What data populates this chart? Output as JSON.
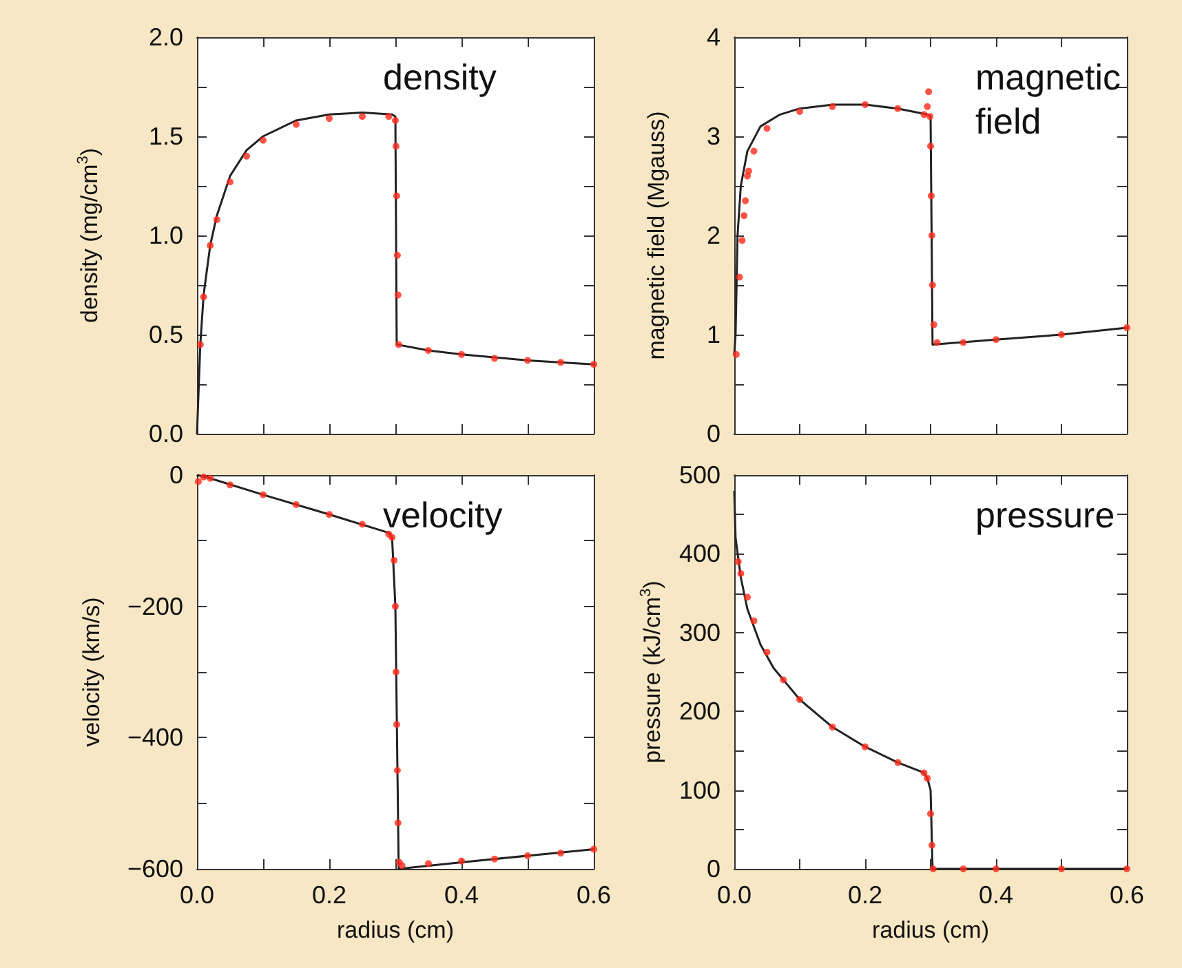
{
  "chart_data": [
    {
      "type": "line",
      "title": "density",
      "ylabel": "density (mg/cm$^{3}$)",
      "xlim": [
        0,
        0.6
      ],
      "ylim": [
        0,
        2.0
      ],
      "tick_labels": "y",
      "xticks": [
        {
          "value": 0,
          "label": null
        },
        {
          "value": 0.1,
          "label": null
        },
        {
          "value": 0.2,
          "label": null
        },
        {
          "value": 0.3,
          "label": null
        },
        {
          "value": 0.4,
          "label": null
        },
        {
          "value": 0.5,
          "label": null
        },
        {
          "value": 0.6,
          "label": null
        }
      ],
      "yticks": [
        {
          "value": 0,
          "label": "0.0"
        },
        {
          "value": 0.25,
          "label": null
        },
        {
          "value": 0.5,
          "label": "0.5"
        },
        {
          "value": 0.75,
          "label": null
        },
        {
          "value": 1,
          "label": "1.0"
        },
        {
          "value": 1.25,
          "label": null
        },
        {
          "value": 1.5,
          "label": "1.5"
        },
        {
          "value": 1.75,
          "label": null
        },
        {
          "value": 2,
          "label": "2.0"
        }
      ],
      "series": [
        {
          "type": "line",
          "color": "#222222",
          "marker": "none",
          "x": [
            0,
            0.005,
            0.01,
            0.02,
            0.03,
            0.05,
            0.075,
            0.1,
            0.15,
            0.2,
            0.25,
            0.295,
            0.3,
            0.302,
            0.35,
            0.4,
            0.5,
            0.6
          ],
          "values": [
            0,
            0.45,
            0.7,
            0.95,
            1.1,
            1.3,
            1.43,
            1.5,
            1.58,
            1.61,
            1.62,
            1.61,
            1.6,
            0.45,
            0.42,
            0.4,
            0.37,
            0.35
          ]
        },
        {
          "type": "scatter",
          "color": "#ff2a1a",
          "marker": "circle",
          "x": [
            0.005,
            0.01,
            0.02,
            0.03,
            0.05,
            0.075,
            0.1,
            0.15,
            0.2,
            0.25,
            0.29,
            0.3,
            0.301,
            0.302,
            0.303,
            0.304,
            0.305,
            0.35,
            0.4,
            0.45,
            0.5,
            0.55,
            0.6
          ],
          "values": [
            0.45,
            0.69,
            0.95,
            1.08,
            1.27,
            1.4,
            1.48,
            1.56,
            1.59,
            1.6,
            1.6,
            1.58,
            1.45,
            1.2,
            0.9,
            0.7,
            0.45,
            0.42,
            0.4,
            0.38,
            0.37,
            0.36,
            0.35
          ]
        }
      ]
    },
    {
      "type": "line",
      "title": "magnetic field",
      "ylabel": "magnetic field (Mgauss)",
      "xlim": [
        0,
        0.6
      ],
      "ylim": [
        0,
        4
      ],
      "tick_labels": "y",
      "xticks": [
        {
          "value": 0,
          "label": null
        },
        {
          "value": 0.1,
          "label": null
        },
        {
          "value": 0.2,
          "label": null
        },
        {
          "value": 0.3,
          "label": null
        },
        {
          "value": 0.4,
          "label": null
        },
        {
          "value": 0.5,
          "label": null
        },
        {
          "value": 0.6,
          "label": null
        }
      ],
      "yticks": [
        0,
        {
          "value": 0.5,
          "label": null
        },
        1,
        {
          "value": 1.5,
          "label": null
        },
        2,
        {
          "value": 2.5,
          "label": null
        },
        3,
        {
          "value": 3.5,
          "label": null
        },
        4
      ],
      "series": [
        {
          "type": "line",
          "color": "#222222",
          "marker": "none",
          "x": [
            0,
            0.002,
            0.005,
            0.01,
            0.02,
            0.04,
            0.07,
            0.1,
            0.15,
            0.2,
            0.25,
            0.295,
            0.3,
            0.303,
            0.4,
            0.5,
            0.6
          ],
          "values": [
            0.8,
            1.0,
            2.0,
            2.5,
            2.85,
            3.1,
            3.22,
            3.28,
            3.32,
            3.32,
            3.28,
            3.22,
            3.2,
            0.9,
            0.95,
            1.0,
            1.07
          ]
        },
        {
          "type": "scatter",
          "color": "#ff2a1a",
          "marker": "circle",
          "x": [
            0.003,
            0.008,
            0.012,
            0.015,
            0.017,
            0.02,
            0.022,
            0.03,
            0.05,
            0.1,
            0.15,
            0.2,
            0.25,
            0.29,
            0.295,
            0.297,
            0.299,
            0.3,
            0.301,
            0.302,
            0.303,
            0.305,
            0.31,
            0.35,
            0.4,
            0.5,
            0.6
          ],
          "values": [
            0.8,
            1.58,
            1.95,
            2.2,
            2.35,
            2.6,
            2.65,
            2.85,
            3.08,
            3.25,
            3.3,
            3.32,
            3.28,
            3.22,
            3.3,
            3.45,
            3.2,
            2.9,
            2.4,
            2.0,
            1.5,
            1.1,
            0.92,
            0.92,
            0.95,
            1.0,
            1.07
          ]
        }
      ]
    },
    {
      "type": "line",
      "title": "velocity",
      "ylabel": "velocity (km/s)",
      "xlabel": "radius (cm)",
      "xlim": [
        0,
        0.6
      ],
      "ylim": [
        -600,
        0
      ],
      "xticks": [
        {
          "value": 0,
          "label": "0.0"
        },
        {
          "value": 0.1,
          "label": null
        },
        {
          "value": 0.2,
          "label": "0.2"
        },
        {
          "value": 0.3,
          "label": null
        },
        {
          "value": 0.4,
          "label": "0.4"
        },
        {
          "value": 0.5,
          "label": null
        },
        {
          "value": 0.6,
          "label": "0.6"
        }
      ],
      "yticks": [
        {
          "value": -600,
          "label": "−600"
        },
        {
          "value": -500,
          "label": null
        },
        {
          "value": -400,
          "label": "−400"
        },
        {
          "value": -300,
          "label": null
        },
        {
          "value": -200,
          "label": "−200"
        },
        {
          "value": -100,
          "label": null
        },
        0
      ],
      "series": [
        {
          "type": "line",
          "color": "#222222",
          "marker": "none",
          "x": [
            0,
            0.02,
            0.1,
            0.2,
            0.29,
            0.295,
            0.3,
            0.305,
            0.4,
            0.5,
            0.6
          ],
          "values": [
            0,
            -5,
            -30,
            -60,
            -88,
            -95,
            -200,
            -600,
            -590,
            -580,
            -570
          ]
        },
        {
          "type": "scatter",
          "color": "#ff2a1a",
          "marker": "circle",
          "x": [
            0.002,
            0.01,
            0.02,
            0.05,
            0.1,
            0.15,
            0.2,
            0.25,
            0.29,
            0.295,
            0.298,
            0.3,
            0.301,
            0.302,
            0.303,
            0.304,
            0.306,
            0.31,
            0.35,
            0.4,
            0.45,
            0.5,
            0.55,
            0.6
          ],
          "values": [
            -10,
            -3,
            -5,
            -15,
            -30,
            -45,
            -60,
            -75,
            -90,
            -95,
            -130,
            -200,
            -300,
            -380,
            -450,
            -530,
            -590,
            -595,
            -592,
            -588,
            -585,
            -580,
            -576,
            -570
          ]
        }
      ]
    },
    {
      "type": "line",
      "title": "pressure",
      "ylabel": "pressure (kJ/cm$^{3}$)",
      "xlabel": "radius (cm)",
      "xlim": [
        0,
        0.6
      ],
      "ylim": [
        0,
        500
      ],
      "xticks": [
        {
          "value": 0,
          "label": "0.0"
        },
        {
          "value": 0.1,
          "label": null
        },
        {
          "value": 0.2,
          "label": "0.2"
        },
        {
          "value": 0.3,
          "label": null
        },
        {
          "value": 0.4,
          "label": "0.4"
        },
        {
          "value": 0.5,
          "label": null
        },
        {
          "value": 0.6,
          "label": "0.6"
        }
      ],
      "yticks": [
        0,
        {
          "value": 50,
          "label": null
        },
        100,
        {
          "value": 150,
          "label": null
        },
        200,
        {
          "value": 250,
          "label": null
        },
        300,
        {
          "value": 350,
          "label": null
        },
        400,
        {
          "value": 450,
          "label": null
        },
        500
      ],
      "series": [
        {
          "type": "line",
          "color": "#222222",
          "marker": "none",
          "x": [
            0,
            0.002,
            0.01,
            0.02,
            0.04,
            0.06,
            0.08,
            0.1,
            0.15,
            0.2,
            0.25,
            0.29,
            0.295,
            0.3,
            0.303,
            0.6
          ],
          "values": [
            480,
            420,
            370,
            330,
            285,
            255,
            235,
            215,
            180,
            155,
            135,
            122,
            115,
            100,
            0,
            0
          ]
        },
        {
          "type": "scatter",
          "color": "#ff2a1a",
          "marker": "circle",
          "x": [
            0.006,
            0.01,
            0.02,
            0.03,
            0.05,
            0.075,
            0.1,
            0.15,
            0.2,
            0.25,
            0.29,
            0.295,
            0.3,
            0.302,
            0.304,
            0.35,
            0.4,
            0.5,
            0.6
          ],
          "values": [
            390,
            375,
            345,
            315,
            275,
            240,
            215,
            180,
            155,
            135,
            122,
            115,
            70,
            30,
            0,
            0,
            0,
            0,
            0
          ]
        }
      ]
    }
  ]
}
